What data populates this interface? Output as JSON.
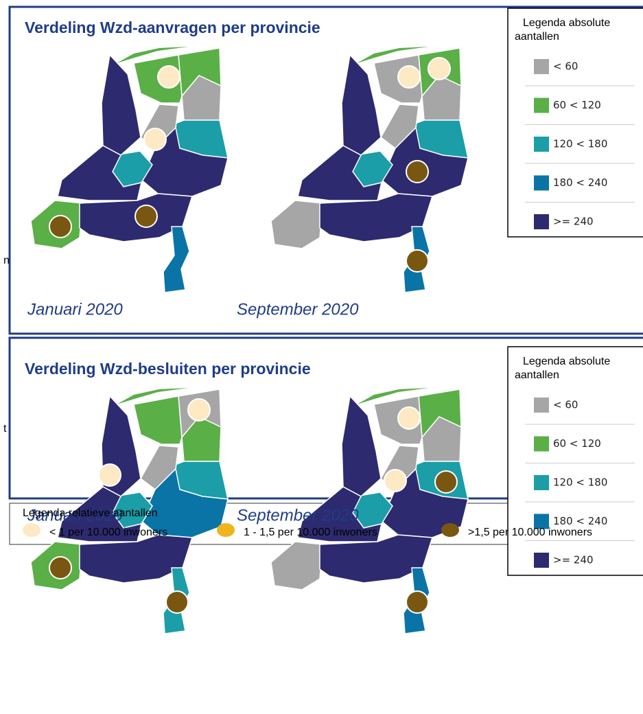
{
  "panels": [
    {
      "title": "Verdeling Wzd-aanvragen per provincie",
      "maps": [
        {
          "label": "Januari 2020",
          "region_colors": [
            "#5aaf47",
            "#5aaf47",
            "#a6a6a6",
            "#1b9ea7",
            "#a6a6a6",
            "#2d2a6f",
            "#1b9ea7",
            "#2d2a6f",
            "#2d2a6f",
            "#5aaf47",
            "#2d2a6f",
            "#0a74a6"
          ],
          "dot_colors": [
            null,
            "#fde9c3",
            null,
            null,
            "#fde9c3",
            null,
            null,
            null,
            null,
            "#7a5710",
            "#7a5710",
            null
          ]
        },
        {
          "label": "September 2020",
          "region_colors": [
            "#5aaf47",
            "#a6a6a6",
            "#a6a6a6",
            "#1b9ea7",
            "#a6a6a6",
            "#2d2a6f",
            "#1b9ea7",
            "#2d2a6f",
            "#2d2a6f",
            "#a6a6a6",
            "#2d2a6f",
            "#0a74a6"
          ],
          "dot_colors": [
            "#fde9c3",
            "#fde9c3",
            null,
            null,
            null,
            "#7a5710",
            null,
            null,
            null,
            null,
            null,
            "#7a5710"
          ]
        }
      ],
      "legend": {
        "title_lines": [
          "Legenda absolute",
          "aantallen"
        ],
        "items": [
          {
            "label": "< 60",
            "color": "#a6a6a6"
          },
          {
            "label": "60 < 120",
            "color": "#5aaf47"
          },
          {
            "label": "120 < 180",
            "color": "#1b9ea7"
          },
          {
            "label": "180 < 240",
            "color": "#0a74a6"
          },
          {
            "label": ">= 240",
            "color": "#2d2a6f"
          }
        ]
      }
    },
    {
      "title": "Verdeling Wzd-besluiten per provincie",
      "maps": [
        {
          "label": "Januari 2020",
          "region_colors": [
            "#a6a6a6",
            "#5aaf47",
            "#5aaf47",
            "#1b9ea7",
            "#a6a6a6",
            "#0a74a6",
            "#1b9ea7",
            "#2d2a6f",
            "#2d2a6f",
            "#5aaf47",
            "#2d2a6f",
            "#1b9ea7"
          ],
          "dot_colors": [
            "#fde9c3",
            null,
            null,
            null,
            null,
            null,
            null,
            "#fde9c3",
            null,
            "#7a5710",
            null,
            "#7a5710"
          ]
        },
        {
          "label": "September 2020",
          "region_colors": [
            "#5aaf47",
            "#a6a6a6",
            "#a6a6a6",
            "#1b9ea7",
            "#a6a6a6",
            "#2d2a6f",
            "#1b9ea7",
            "#2d2a6f",
            "#2d2a6f",
            "#a6a6a6",
            "#2d2a6f",
            "#0a74a6"
          ],
          "dot_colors": [
            null,
            "#fde9c3",
            null,
            "#7a5710",
            "#fde9c3",
            null,
            null,
            null,
            null,
            null,
            null,
            "#7a5710"
          ]
        }
      ],
      "legend": {
        "title_lines": [
          "Legenda absolute",
          "aantallen"
        ],
        "items": [
          {
            "label": "< 60",
            "color": "#a6a6a6"
          },
          {
            "label": "60 < 120",
            "color": "#5aaf47"
          },
          {
            "label": "120 < 180",
            "color": "#1b9ea7"
          },
          {
            "label": "180 < 240",
            "color": "#0a74a6"
          },
          {
            "label": ">= 240",
            "color": "#2d2a6f"
          }
        ]
      }
    }
  ],
  "relative_legend": {
    "title": "Legenda relatieve aantallen",
    "items": [
      {
        "label": "< 1 per 10.000 inwoners",
        "color": "#fde9c3"
      },
      {
        "label": "1 - 1,5 per 10.000 inwoners",
        "color": "#f0b41c"
      },
      {
        "label": ">1,5 per 10.000 inwoners",
        "color": "#7a5710"
      }
    ]
  },
  "side_fragments": [
    "n",
    "t"
  ]
}
